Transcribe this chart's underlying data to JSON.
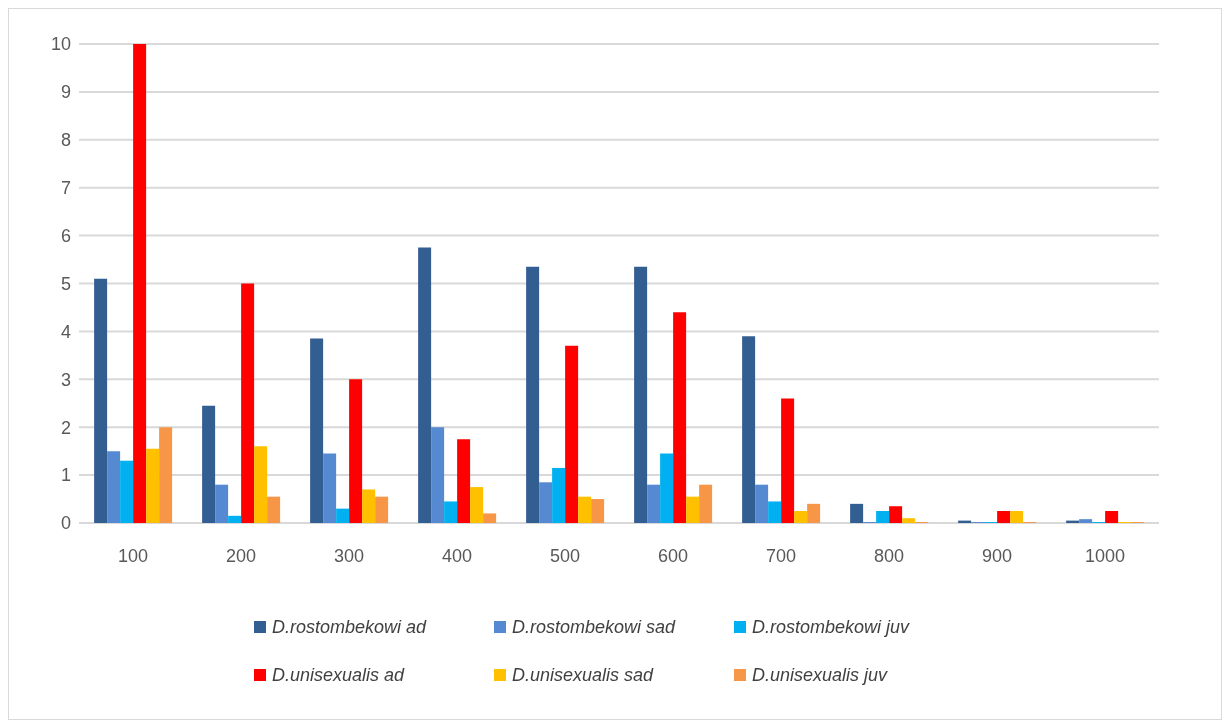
{
  "chart_data": {
    "type": "bar",
    "categories": [
      "100",
      "200",
      "300",
      "400",
      "500",
      "600",
      "700",
      "800",
      "900",
      "1000"
    ],
    "series": [
      {
        "name": "D.rostombekowi ad",
        "color": "#335e91",
        "values": [
          5.1,
          2.45,
          3.85,
          5.75,
          5.35,
          5.35,
          3.9,
          0.4,
          0.05,
          0.05
        ]
      },
      {
        "name": "D.rostombekowi sad",
        "color": "#558ad3",
        "values": [
          1.5,
          0.8,
          1.45,
          2.0,
          0.85,
          0.8,
          0.8,
          0.02,
          0.02,
          0.08
        ]
      },
      {
        "name": "D.rostombekowi juv",
        "color": "#00b0f0",
        "values": [
          1.3,
          0.15,
          0.3,
          0.45,
          1.15,
          1.45,
          0.45,
          0.25,
          0.02,
          0.02
        ]
      },
      {
        "name": "D.unisexualis ad",
        "color": "#ff0000",
        "values": [
          10,
          5.0,
          3.0,
          1.75,
          3.7,
          4.4,
          2.6,
          0.35,
          0.25,
          0.25
        ]
      },
      {
        "name": "D.unisexualis sad",
        "color": "#ffc000",
        "values": [
          1.55,
          1.6,
          0.7,
          0.75,
          0.55,
          0.55,
          0.25,
          0.1,
          0.25,
          0.02
        ]
      },
      {
        "name": "D.unisexualis juv",
        "color": "#f79646",
        "values": [
          2.0,
          0.55,
          0.55,
          0.2,
          0.5,
          0.8,
          0.4,
          0.02,
          0.02,
          0.02
        ]
      }
    ],
    "ylim": [
      0,
      10
    ],
    "yticks": [
      0,
      1,
      2,
      3,
      4,
      5,
      6,
      7,
      8,
      9,
      10
    ],
    "grid": "y",
    "legend": "bottom"
  }
}
